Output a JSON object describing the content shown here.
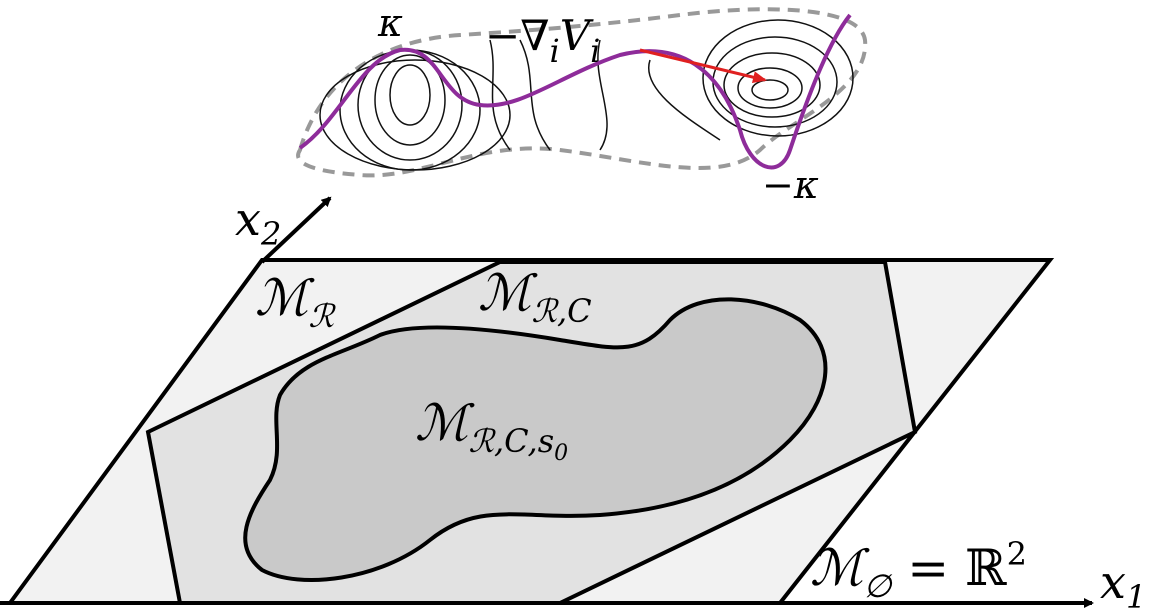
{
  "labels": {
    "kappa": "κ",
    "neg_kappa": "−κ",
    "gradient": {
      "text": "−∇",
      "sub": "i",
      "var": "V",
      "var_sub": "i"
    },
    "x2": {
      "text": "x",
      "sub": "2"
    },
    "x1": {
      "text": "x",
      "sub": "1"
    },
    "m_r": {
      "text": "ℳ",
      "sub": "ℛ"
    },
    "m_rc": {
      "text": "ℳ",
      "sub": "ℛ,C"
    },
    "m_rcs": {
      "text": "ℳ",
      "sub": "ℛ,C,s",
      "subsub": "0"
    },
    "m_empty": {
      "text": "ℳ",
      "sub": "∅",
      "rest": " = ℝ",
      "sup": "2"
    }
  }
}
